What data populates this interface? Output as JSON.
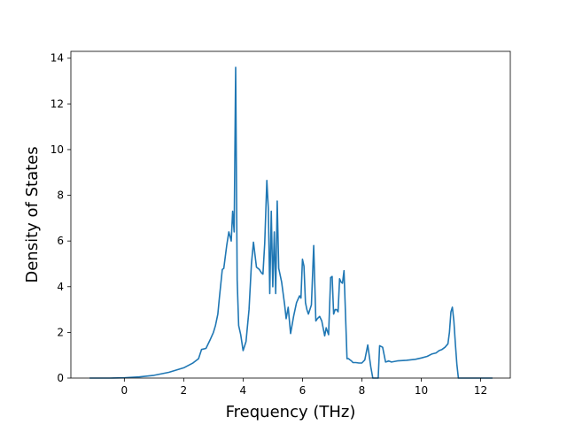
{
  "chart_data": {
    "type": "line",
    "title": "",
    "xlabel": "Frequency (THz)",
    "ylabel": "Density of States",
    "xlim": [
      -1.8,
      13.0
    ],
    "ylim": [
      0,
      14.3
    ],
    "xticks": [
      0,
      2,
      4,
      6,
      8,
      10,
      12
    ],
    "yticks": [
      0,
      2,
      4,
      6,
      8,
      10,
      12,
      14
    ],
    "grid": false,
    "legend": "none",
    "series": [
      {
        "color": "#1f77b4",
        "x": [
          -1.17,
          -0.5,
          0.0,
          0.5,
          1.0,
          1.5,
          2.0,
          2.3,
          2.5,
          2.6,
          2.75,
          2.9,
          3.0,
          3.07,
          3.15,
          3.2,
          3.3,
          3.35,
          3.45,
          3.52,
          3.6,
          3.65,
          3.7,
          3.75,
          3.8,
          3.85,
          3.92,
          4.0,
          4.1,
          4.2,
          4.28,
          4.35,
          4.45,
          4.55,
          4.62,
          4.67,
          4.73,
          4.8,
          4.85,
          4.9,
          4.95,
          5.0,
          5.05,
          5.1,
          5.15,
          5.2,
          5.3,
          5.4,
          5.45,
          5.52,
          5.6,
          5.7,
          5.8,
          5.9,
          5.95,
          6.0,
          6.05,
          6.1,
          6.15,
          6.2,
          6.3,
          6.38,
          6.45,
          6.5,
          6.58,
          6.65,
          6.75,
          6.8,
          6.88,
          6.95,
          7.0,
          7.05,
          7.1,
          7.15,
          7.2,
          7.25,
          7.3,
          7.35,
          7.4,
          7.5,
          7.55,
          7.6,
          7.65,
          7.7,
          7.8,
          7.9,
          8.0,
          8.1,
          8.2,
          8.3,
          8.37,
          8.45,
          8.5,
          8.55,
          8.6,
          8.7,
          8.8,
          8.85,
          8.9,
          9.0,
          9.2,
          9.5,
          9.8,
          10.0,
          10.2,
          10.35,
          10.5,
          10.6,
          10.7,
          10.8,
          10.9,
          10.95,
          11.0,
          11.05,
          11.1,
          11.15,
          11.2,
          11.25,
          11.3,
          11.5,
          12.0,
          12.4
        ],
        "y": [
          0.0,
          0.0,
          0.01,
          0.05,
          0.12,
          0.25,
          0.45,
          0.65,
          0.85,
          1.25,
          1.3,
          1.7,
          2.0,
          2.3,
          2.8,
          3.5,
          4.75,
          4.8,
          5.8,
          6.4,
          6.0,
          7.3,
          6.4,
          13.6,
          4.3,
          2.3,
          1.9,
          1.2,
          1.6,
          3.0,
          5.0,
          5.95,
          4.85,
          4.75,
          4.6,
          4.55,
          5.9,
          8.65,
          7.4,
          3.7,
          7.3,
          4.0,
          6.4,
          3.7,
          7.75,
          4.8,
          4.2,
          3.2,
          2.6,
          3.1,
          1.95,
          2.7,
          3.3,
          3.6,
          3.5,
          5.2,
          4.9,
          3.3,
          3.0,
          2.8,
          3.2,
          5.8,
          2.5,
          2.6,
          2.7,
          2.5,
          1.85,
          2.2,
          1.9,
          4.4,
          4.45,
          2.8,
          3.0,
          3.0,
          2.9,
          4.35,
          4.2,
          4.15,
          4.7,
          0.85,
          0.85,
          0.8,
          0.75,
          0.68,
          0.68,
          0.66,
          0.66,
          0.8,
          1.45,
          0.5,
          0.0,
          0.0,
          0.0,
          0.0,
          1.42,
          1.35,
          0.7,
          0.72,
          0.75,
          0.7,
          0.75,
          0.78,
          0.82,
          0.88,
          0.95,
          1.05,
          1.1,
          1.2,
          1.25,
          1.35,
          1.5,
          2.0,
          2.9,
          3.1,
          2.5,
          1.5,
          0.6,
          0.0,
          0.0,
          0.0,
          0.0,
          0.0
        ]
      }
    ]
  }
}
